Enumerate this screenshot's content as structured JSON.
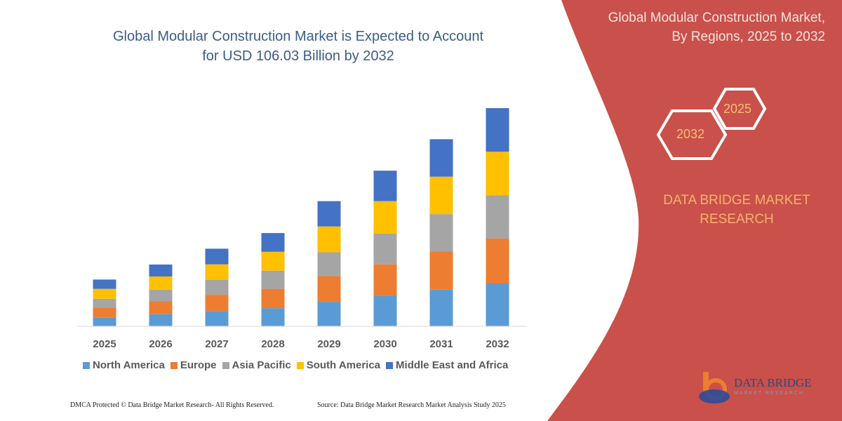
{
  "header": {
    "title_line1": "Global Modular Construction Market is Expected to Account",
    "title_line2": "for USD 106.03 Billion by 2032"
  },
  "side_panel": {
    "title_line1": "Global Modular Construction Market,",
    "title_line2": "By Regions, 2025 to 2032",
    "hex_end_year": "2032",
    "hex_start_year": "2025",
    "brand_line1": "DATA BRIDGE MARKET",
    "brand_line2": "RESEARCH",
    "color": "#c9504b"
  },
  "logo": {
    "name": "DATA BRIDGE",
    "sub": "MARKET RESEARCH"
  },
  "footer": {
    "copyright": "DMCA Protected © Data Bridge Market Research- All Rights Reserved.",
    "source": "Source: Data Bridge Market Research Market Analysis Study 2025"
  },
  "chart_data": {
    "type": "bar",
    "stacked": true,
    "title": "Global Modular Construction Market is Expected to Account for USD 106.03 Billion by 2032",
    "xlabel": "",
    "ylabel": "",
    "ylim": [
      0,
      106.03
    ],
    "grid": false,
    "legend": "bottom",
    "categories": [
      "2025",
      "2026",
      "2027",
      "2028",
      "2029",
      "2030",
      "2031",
      "2032"
    ],
    "series": [
      {
        "name": "North America",
        "color": "#5b9bd5",
        "values": [
          4.2,
          5.9,
          7.4,
          8.8,
          11.9,
          14.8,
          17.8,
          20.8
        ]
      },
      {
        "name": "Europe",
        "color": "#ed7d31",
        "values": [
          4.9,
          6.2,
          7.9,
          9.4,
          12.5,
          15.3,
          18.5,
          21.8
        ]
      },
      {
        "name": "Asia Pacific",
        "color": "#a5a5a5",
        "values": [
          4.3,
          5.7,
          7.2,
          8.8,
          11.6,
          15.0,
          18.2,
          21.0
        ]
      },
      {
        "name": "South America",
        "color": "#ffc000",
        "values": [
          4.8,
          6.4,
          7.6,
          9.2,
          12.5,
          15.7,
          18.2,
          21.2
        ]
      },
      {
        "name": "Middle East and Africa",
        "color": "#4472c4",
        "values": [
          4.5,
          5.8,
          7.6,
          9.1,
          12.3,
          14.8,
          18.2,
          21.2
        ]
      }
    ]
  }
}
